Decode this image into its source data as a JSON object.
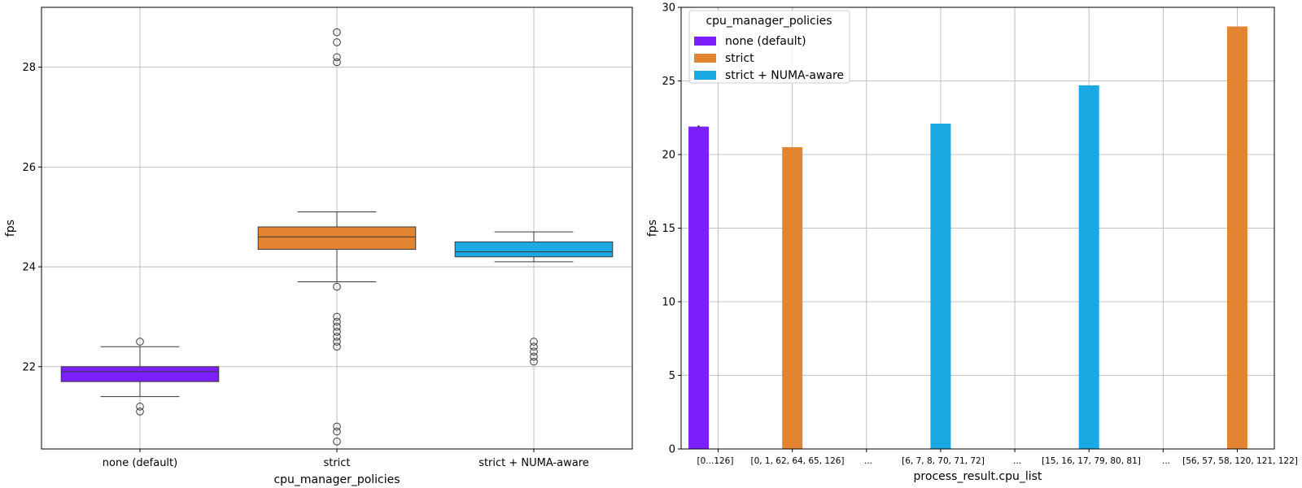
{
  "chart_data": [
    {
      "type": "box",
      "xlabel": "cpu_manager_policies",
      "ylabel": "fps",
      "ylim": [
        20.35,
        29.2
      ],
      "yticks": [
        22,
        24,
        26,
        28
      ],
      "categories": [
        "none (default)",
        "strict",
        "strict + NUMA-aware"
      ],
      "grid": true,
      "boxes": [
        {
          "category": "none (default)",
          "color": "#7b20fb",
          "whisker_low": 21.4,
          "q1": 21.7,
          "median": 21.9,
          "q3": 22.0,
          "whisker_high": 22.4,
          "outliers": [
            22.5,
            21.2,
            21.1
          ]
        },
        {
          "category": "strict",
          "color": "#e38430",
          "whisker_low": 23.7,
          "q1": 24.35,
          "median": 24.6,
          "q3": 24.8,
          "whisker_high": 25.1,
          "outliers": [
            28.7,
            28.5,
            28.2,
            28.1,
            23.6,
            23.0,
            22.9,
            22.8,
            22.7,
            22.6,
            22.5,
            22.4,
            20.8,
            20.7,
            20.5
          ]
        },
        {
          "category": "strict + NUMA-aware",
          "color": "#1aa9e3",
          "whisker_low": 24.1,
          "q1": 24.2,
          "median": 24.3,
          "q3": 24.5,
          "whisker_high": 24.7,
          "outliers": [
            22.5,
            22.4,
            22.3,
            22.2,
            22.1
          ]
        }
      ]
    },
    {
      "type": "bar",
      "xlabel": "process_result.cpu_list",
      "ylabel": "fps",
      "ylim": [
        0,
        30
      ],
      "yticks": [
        0,
        5,
        10,
        15,
        20,
        25,
        30
      ],
      "categories": [
        "[0...126]",
        "[0, 1, 62, 64, 65, 126]",
        "...",
        "[6, 7, 8, 70, 71, 72]",
        "...",
        "[15, 16, 17, 79, 80, 81]",
        "...",
        "[56, 57, 58, 120, 121, 122]"
      ],
      "grid": true,
      "legend_title": "cpu_manager_policies",
      "legend_position": "top-left",
      "series": [
        {
          "name": "none (default)",
          "color": "#7b20fb",
          "values": [
            21.9,
            null,
            null,
            null,
            null,
            null,
            null,
            null
          ]
        },
        {
          "name": "strict",
          "color": "#e38430",
          "values": [
            null,
            20.5,
            null,
            null,
            null,
            null,
            null,
            28.7
          ]
        },
        {
          "name": "strict + NUMA-aware",
          "color": "#1aa9e3",
          "values": [
            null,
            null,
            null,
            22.1,
            null,
            24.7,
            null,
            null
          ]
        }
      ]
    }
  ]
}
